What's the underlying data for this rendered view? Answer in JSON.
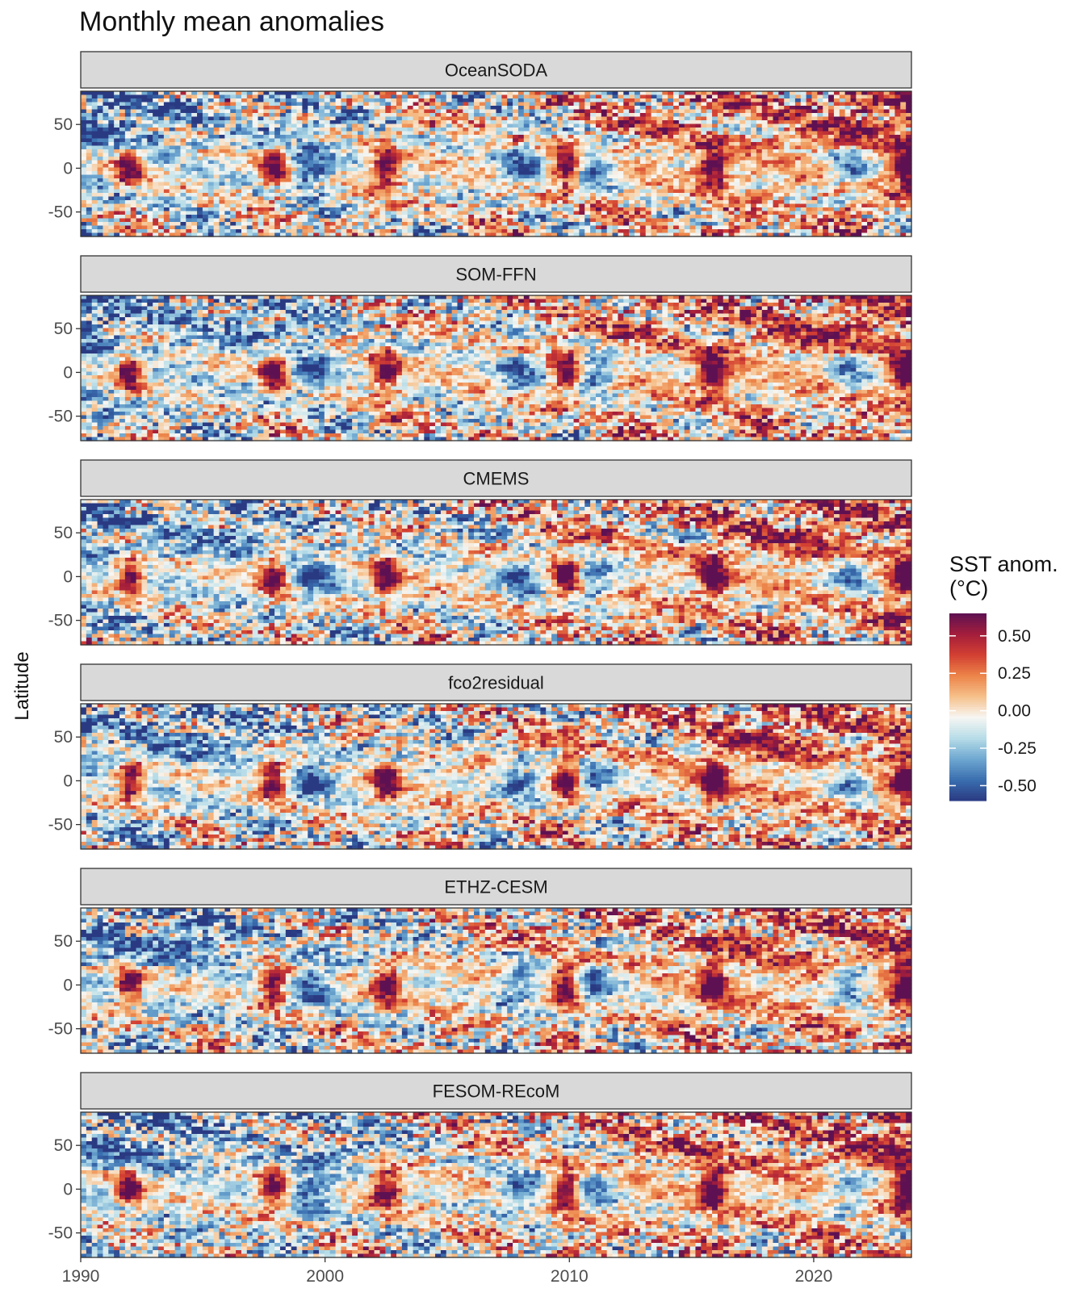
{
  "chart_data": {
    "type": "heatmap",
    "title": "Monthly mean anomalies",
    "xlabel": "",
    "ylabel": "Latitude",
    "x_range": [
      1990,
      2024
    ],
    "y_range": [
      -78,
      88
    ],
    "x_ticks": [
      1990,
      2000,
      2010,
      2020
    ],
    "y_ticks": [
      50,
      0,
      -50
    ],
    "panels": [
      "OceanSODA",
      "SOM-FFN",
      "CMEMS",
      "fco2residual",
      "ETHZ-CESM",
      "FESOM-REcoM"
    ],
    "colorbar": {
      "title": [
        "SST anom.",
        "(°C)"
      ],
      "ticks": [
        0.5,
        0.25,
        0.0,
        -0.25,
        -0.5
      ],
      "tick_labels": [
        "0.50",
        "0.25",
        "0.00",
        "-0.25",
        "-0.50"
      ],
      "range": [
        -0.6,
        0.65
      ],
      "palette": [
        "#2a3a82",
        "#3a6fb0",
        "#6fa8d1",
        "#b7dde8",
        "#f7f6f2",
        "#f6c08a",
        "#ec8449",
        "#d23f32",
        "#a41e3c",
        "#5e1152"
      ]
    },
    "approximate_features": {
      "el_nino_peaks_years": [
        1992,
        1997.9,
        2002.5,
        2009.9,
        2015.9,
        2023.8
      ],
      "la_nina_years": [
        1999.5,
        2008,
        2011,
        2021.5
      ],
      "note_stripes": "anomaly strongly varies with latitude bands"
    }
  }
}
